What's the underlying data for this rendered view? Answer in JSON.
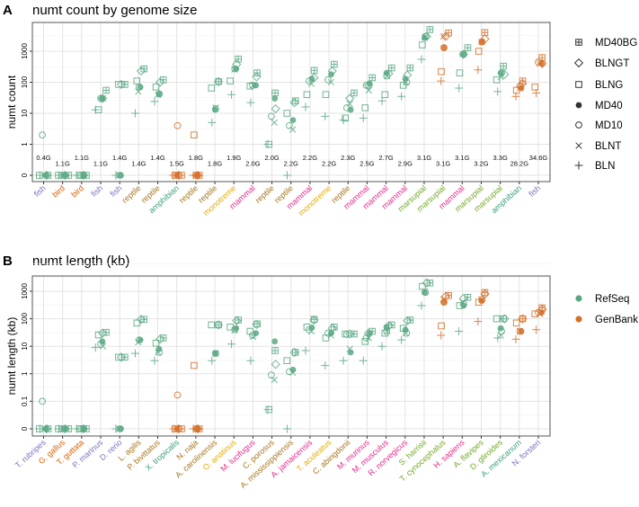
{
  "colors": {
    "RefSeq": "#5aa883",
    "GenBank": "#d4702a",
    "fish": "#7b72c0",
    "bird": "#d95f02",
    "reptile": "#a6761d",
    "amphibian": "#3d9e7a",
    "monotreme": "#e6ab02",
    "mammal": "#e7298a",
    "marsupial": "#73a826"
  },
  "methods": [
    "MD40BG",
    "BLNGT",
    "BLNG",
    "MD40",
    "MD10",
    "BLNT",
    "BLN"
  ],
  "chart_data": [
    {
      "type": "scatter",
      "panel": "A",
      "title": "numt count by genome size",
      "ylabel": "numt count",
      "yticks": [
        "0",
        "1",
        "10",
        "100",
        "1000"
      ],
      "yscale": "pseudo-log",
      "grid": true,
      "legend": "right",
      "legend_entries": [
        "MD40BG",
        "BLNGT",
        "BLNG",
        "MD40",
        "MD10",
        "BLNT",
        "BLN"
      ],
      "categories": [
        "fish",
        "bird",
        "bird",
        "fish",
        "fish",
        "reptile",
        "reptile",
        "amphibian",
        "reptile",
        "reptile",
        "monotreme",
        "mammal",
        "reptile",
        "reptile",
        "mammal",
        "monotreme",
        "reptile",
        "mammal",
        "mammal",
        "mammal",
        "marsupial",
        "marsupial",
        "mammal",
        "marsupial",
        "marsupial",
        "amphibian",
        "fish"
      ],
      "genome_size": [
        "0.4G",
        "1.1G",
        "1.1G",
        "1.1G",
        "1.4G",
        "1.4G",
        "1.4G",
        "1.5G",
        "1.8G",
        "1.8G",
        "1.9G",
        "2.0G",
        "2.0G",
        "2.2G",
        "2.2G",
        "2.2G",
        "2.3G",
        "2.5G",
        "2.7G",
        "2.9G",
        "3.1G",
        "3.1G",
        "3.1G",
        "3.2G",
        "3.3G",
        "28.2G",
        "34.6G"
      ],
      "source": [
        "RefSeq",
        "RefSeq",
        "RefSeq",
        "RefSeq",
        "RefSeq",
        "RefSeq",
        "RefSeq",
        "GenBank",
        "GenBank",
        "RefSeq",
        "RefSeq",
        "RefSeq",
        "RefSeq",
        "RefSeq",
        "RefSeq",
        "RefSeq",
        "RefSeq",
        "RefSeq",
        "RefSeq",
        "RefSeq",
        "RefSeq",
        "GenBank",
        "RefSeq",
        "GenBank",
        "RefSeq",
        "GenBank",
        "GenBank"
      ],
      "values": [
        [
          0,
          0,
          0,
          0,
          2,
          0,
          0
        ],
        [
          0,
          0,
          0,
          0,
          0,
          0,
          0
        ],
        [
          0,
          0,
          0,
          0,
          0,
          0,
          0
        ],
        [
          55,
          30,
          13,
          30,
          30,
          30,
          13
        ],
        [
          85,
          85,
          85,
          0,
          0,
          0,
          0
        ],
        [
          270,
          230,
          110,
          70,
          70,
          50,
          10
        ],
        [
          120,
          100,
          70,
          42,
          42,
          40,
          24
        ],
        [
          0,
          0,
          0,
          0,
          4,
          0,
          0
        ],
        [
          0,
          0,
          2,
          0,
          0,
          0,
          0
        ],
        [
          105,
          105,
          65,
          13,
          14,
          15,
          5
        ],
        [
          560,
          380,
          110,
          270,
          270,
          260,
          40
        ],
        [
          200,
          150,
          75,
          80,
          80,
          80,
          22
        ],
        [
          45,
          14,
          1,
          30,
          8,
          5,
          1
        ],
        [
          25,
          22,
          10,
          6,
          4,
          3,
          0
        ],
        [
          240,
          140,
          40,
          130,
          110,
          90,
          16
        ],
        [
          380,
          230,
          40,
          180,
          120,
          100,
          8
        ],
        [
          45,
          30,
          7,
          13,
          15,
          20,
          6
        ],
        [
          140,
          80,
          15,
          90,
          80,
          55,
          7
        ],
        [
          290,
          190,
          40,
          200,
          160,
          160,
          25
        ],
        [
          290,
          170,
          80,
          130,
          100,
          100,
          35
        ],
        [
          5000,
          3000,
          1600,
          2700,
          3000,
          2800,
          550
        ],
        [
          3900,
          3000,
          220,
          1300,
          1300,
          3000,
          110
        ],
        [
          1300,
          800,
          200,
          800,
          800,
          800,
          65
        ],
        [
          4000,
          2500,
          1000,
          2000,
          2000,
          2000,
          250
        ],
        [
          330,
          180,
          120,
          200,
          200,
          150,
          50
        ],
        [
          110,
          90,
          55,
          65,
          75,
          65,
          35
        ],
        [
          620,
          400,
          70,
          400,
          450,
          400,
          45
        ]
      ]
    },
    {
      "type": "scatter",
      "panel": "B",
      "title": "numt length (kb)",
      "ylabel": "numt length (kb)",
      "yticks": [
        "0",
        "0.1",
        "1",
        "10",
        "100",
        "1000"
      ],
      "yscale": "pseudo-log",
      "grid": true,
      "legend": "right",
      "legend_entries": [
        "RefSeq",
        "GenBank"
      ],
      "categories": [
        "T. rubripes",
        "G. gallus",
        "T. guttata",
        "P. marinus",
        "D. rerio",
        "L. agilis",
        "P. bivittatus",
        "X. tropicalis",
        "N. naja",
        "A. carolinensis",
        "O. anatinus",
        "M. lucifugus",
        "C. porosus",
        "A. mississippiensis",
        "A. jamaicensis",
        "T. aculeatus",
        "C. abingdonii",
        "M. murinus",
        "M. musculus",
        "R. norvegicus",
        "S. harrisii",
        "T. cynocephalus",
        "H. sapiens",
        "A. flavipes",
        "D. gliroides",
        "A. mexicanum",
        "N. forsteri"
      ],
      "category_class": [
        "fish",
        "bird",
        "bird",
        "fish",
        "fish",
        "reptile",
        "reptile",
        "amphibian",
        "reptile",
        "reptile",
        "monotreme",
        "mammal",
        "reptile",
        "reptile",
        "mammal",
        "monotreme",
        "reptile",
        "mammal",
        "mammal",
        "mammal",
        "marsupial",
        "marsupial",
        "mammal",
        "marsupial",
        "marsupial",
        "amphibian",
        "fish"
      ],
      "source": [
        "RefSeq",
        "RefSeq",
        "RefSeq",
        "RefSeq",
        "RefSeq",
        "RefSeq",
        "RefSeq",
        "GenBank",
        "GenBank",
        "RefSeq",
        "RefSeq",
        "RefSeq",
        "RefSeq",
        "RefSeq",
        "RefSeq",
        "RefSeq",
        "RefSeq",
        "RefSeq",
        "RefSeq",
        "RefSeq",
        "RefSeq",
        "GenBank",
        "RefSeq",
        "GenBank",
        "RefSeq",
        "GenBank",
        "GenBank"
      ],
      "values": [
        [
          0,
          0,
          0,
          0,
          0.1,
          0,
          0
        ],
        [
          0,
          0,
          0,
          0,
          0,
          0,
          0
        ],
        [
          0,
          0,
          0,
          0,
          0,
          0,
          0
        ],
        [
          32,
          30,
          26,
          15,
          12,
          10,
          9
        ],
        [
          4,
          4,
          4,
          0,
          0,
          0,
          0
        ],
        [
          95,
          95,
          70,
          17,
          17,
          14,
          5.5
        ],
        [
          20,
          18,
          13,
          8,
          6,
          6,
          3
        ],
        [
          0,
          0,
          0,
          0,
          0.17,
          0,
          0
        ],
        [
          0,
          0,
          2,
          0,
          0,
          0,
          0
        ],
        [
          60,
          60,
          60,
          5.5,
          5.5,
          5.5,
          3
        ],
        [
          90,
          85,
          50,
          45,
          40,
          38,
          12
        ],
        [
          65,
          62,
          35,
          30,
          25,
          22,
          3
        ],
        [
          7,
          2.2,
          0.05,
          15,
          0.9,
          0.6,
          0.05
        ],
        [
          6,
          6,
          3,
          1.4,
          1.2,
          1.1,
          0
        ],
        [
          95,
          90,
          50,
          48,
          40,
          35,
          7
        ],
        [
          50,
          45,
          20,
          30,
          30,
          25,
          2
        ],
        [
          28,
          28,
          28,
          6,
          27,
          8,
          3
        ],
        [
          35,
          30,
          15,
          30,
          20,
          20,
          3
        ],
        [
          60,
          55,
          30,
          50,
          35,
          35,
          10
        ],
        [
          90,
          85,
          45,
          40,
          30,
          30,
          17
        ],
        [
          2000,
          2000,
          1500,
          900,
          900,
          1000,
          300
        ],
        [
          700,
          650,
          55,
          400,
          400,
          500,
          25
        ],
        [
          600,
          550,
          300,
          300,
          350,
          400,
          35
        ],
        [
          900,
          800,
          400,
          450,
          500,
          500,
          80
        ],
        [
          100,
          100,
          100,
          45,
          35,
          25,
          20
        ],
        [
          100,
          100,
          70,
          35,
          35,
          35,
          18
        ],
        [
          250,
          220,
          150,
          170,
          170,
          150,
          40
        ]
      ]
    }
  ]
}
